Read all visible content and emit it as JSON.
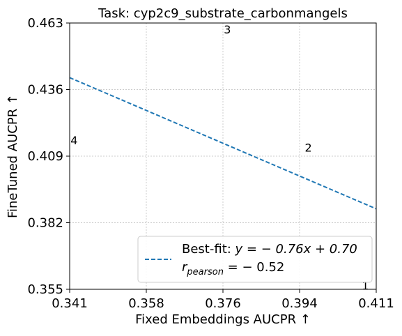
{
  "chart_data": {
    "type": "scatter",
    "title": "Task: cyp2c9_substrate_carbonmangels",
    "xlabel": "Fixed Embeddings AUCPR ↑",
    "ylabel": "FineTuned AUCPR ↑",
    "xlim": [
      0.341,
      0.411
    ],
    "ylim": [
      0.355,
      0.463
    ],
    "x_ticks": [
      "0.341",
      "0.358",
      "0.376",
      "0.394",
      "0.411"
    ],
    "y_ticks": [
      "0.355",
      "0.382",
      "0.409",
      "0.436",
      "0.463"
    ],
    "grid": true,
    "points": [
      {
        "label": "1",
        "x": 0.4085,
        "y": 0.3565
      },
      {
        "label": "2",
        "x": 0.3955,
        "y": 0.4125
      },
      {
        "label": "3",
        "x": 0.377,
        "y": 0.4605
      },
      {
        "label": "4",
        "x": 0.342,
        "y": 0.4155
      }
    ],
    "fit_line": {
      "slope": -0.76,
      "intercept": 0.7,
      "color": "#1f77b4"
    },
    "legend": {
      "position": "lower-right",
      "fit_label_prefix": "Best-fit: ",
      "fit_equation": "y = − 0.76x + 0.70",
      "r_label_symbol": "r",
      "r_label_subscript": "pearson",
      "r_label_value": " = − 0.52"
    }
  }
}
